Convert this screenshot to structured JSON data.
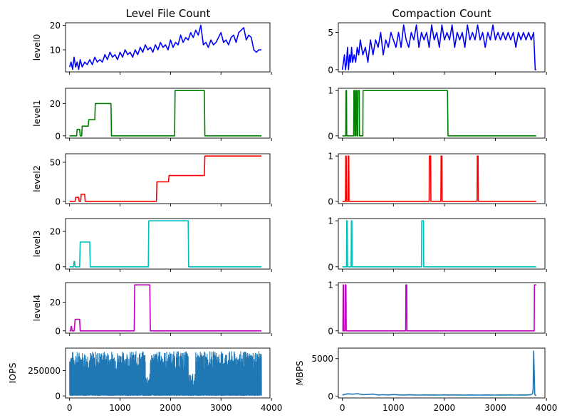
{
  "figure": {
    "left_title": "Level File Count",
    "right_title": "Compaction Count"
  },
  "colors": {
    "level0": "#0000ff",
    "level1": "#008000",
    "level2": "#ff0000",
    "level3": "#00bfbf",
    "level4": "#bf00bf",
    "throughput": "#1f77b4"
  },
  "chart_data": [
    {
      "id": "file_level0",
      "type": "line",
      "title": "Level File Count",
      "ylabel": "level0",
      "xlim": [
        -80,
        3970
      ],
      "ylim": [
        1,
        21
      ],
      "yticks": [
        10,
        20
      ],
      "xticklabels": false,
      "color": "level0",
      "x": [
        0,
        30,
        60,
        90,
        120,
        150,
        180,
        210,
        250,
        300,
        350,
        400,
        450,
        500,
        550,
        600,
        650,
        700,
        750,
        800,
        850,
        900,
        950,
        1000,
        1050,
        1100,
        1150,
        1200,
        1250,
        1300,
        1350,
        1400,
        1450,
        1500,
        1550,
        1600,
        1650,
        1700,
        1750,
        1800,
        1850,
        1900,
        1950,
        2000,
        2050,
        2100,
        2150,
        2200,
        2250,
        2300,
        2350,
        2400,
        2450,
        2500,
        2550,
        2600,
        2650,
        2700,
        2750,
        2800,
        2850,
        2900,
        2950,
        3000,
        3050,
        3100,
        3150,
        3200,
        3250,
        3300,
        3350,
        3400,
        3450,
        3500,
        3550,
        3600,
        3650,
        3700,
        3750,
        3800
      ],
      "y": [
        3,
        5,
        2,
        7,
        3,
        5,
        2,
        6,
        3,
        5,
        4,
        6,
        4,
        7,
        5,
        6,
        5,
        8,
        6,
        9,
        7,
        8,
        6,
        9,
        7,
        10,
        8,
        9,
        7,
        10,
        8,
        11,
        9,
        12,
        10,
        11,
        9,
        12,
        10,
        13,
        11,
        12,
        10,
        14,
        11,
        13,
        12,
        16,
        13,
        15,
        14,
        17,
        15,
        18,
        16,
        20,
        12,
        13,
        11,
        14,
        12,
        13,
        15,
        17,
        13,
        14,
        12,
        15,
        16,
        13,
        17,
        18,
        19,
        14,
        16,
        15,
        10,
        9,
        10,
        10
      ]
    },
    {
      "id": "compaction_level0",
      "type": "line",
      "title": "Compaction Count",
      "xlim": [
        -80,
        3970
      ],
      "ylim": [
        -0.3,
        6.3
      ],
      "yticks": [
        0,
        5
      ],
      "xticklabels": false,
      "color": "level0",
      "x": [
        0,
        40,
        60,
        80,
        100,
        120,
        140,
        160,
        180,
        200,
        230,
        260,
        290,
        320,
        350,
        400,
        450,
        500,
        550,
        600,
        650,
        700,
        750,
        800,
        850,
        900,
        950,
        1000,
        1050,
        1100,
        1150,
        1200,
        1250,
        1300,
        1350,
        1400,
        1450,
        1500,
        1550,
        1600,
        1650,
        1700,
        1750,
        1800,
        1850,
        1900,
        1950,
        2000,
        2050,
        2100,
        2150,
        2200,
        2250,
        2300,
        2350,
        2400,
        2450,
        2500,
        2550,
        2600,
        2650,
        2700,
        2750,
        2800,
        2850,
        2900,
        2950,
        3000,
        3050,
        3100,
        3150,
        3200,
        3250,
        3300,
        3350,
        3400,
        3450,
        3500,
        3550,
        3600,
        3650,
        3700,
        3750,
        3780,
        3800
      ],
      "y": [
        0,
        2,
        0,
        1,
        3,
        0,
        2,
        1,
        3,
        1,
        2,
        1,
        3,
        2,
        4,
        2,
        3,
        1,
        4,
        2,
        4,
        3,
        5,
        2,
        4,
        3,
        5,
        4,
        3,
        5,
        3,
        6,
        4,
        3,
        5,
        4,
        6,
        3,
        5,
        4,
        5,
        3,
        6,
        4,
        5,
        3,
        6,
        4,
        5,
        4,
        6,
        3,
        5,
        4,
        5,
        3,
        6,
        4,
        5,
        4,
        6,
        4,
        5,
        3,
        5,
        4,
        6,
        4,
        5,
        4,
        5,
        4,
        5,
        4,
        5,
        3,
        5,
        4,
        5,
        4,
        5,
        4,
        5,
        0,
        0
      ]
    },
    {
      "id": "file_level1",
      "type": "line",
      "ylabel": "level1",
      "xlim": [
        -80,
        3970
      ],
      "ylim": [
        -1.4,
        29.4
      ],
      "yticks": [
        0,
        20
      ],
      "xticklabels": false,
      "color": "level1",
      "x": [
        0,
        140,
        150,
        200,
        210,
        240,
        250,
        370,
        380,
        500,
        510,
        820,
        830,
        2080,
        2090,
        2670,
        2680,
        3800
      ],
      "y": [
        0,
        0,
        4,
        4,
        0,
        0,
        6,
        6,
        10,
        10,
        20,
        20,
        0,
        0,
        28,
        28,
        0,
        0
      ]
    },
    {
      "id": "compaction_level1",
      "type": "line",
      "xlim": [
        -80,
        3970
      ],
      "ylim": [
        -0.05,
        1.05
      ],
      "yticks": [
        0,
        1
      ],
      "xticklabels": false,
      "color": "level1",
      "x": [
        0,
        65,
        70,
        80,
        85,
        220,
        225,
        240,
        245,
        260,
        265,
        280,
        285,
        300,
        305,
        330,
        335,
        400,
        405,
        2060,
        2070,
        2080,
        2090,
        3800
      ],
      "y": [
        0,
        0,
        1,
        1,
        0,
        0,
        1,
        1,
        0,
        0,
        1,
        1,
        0,
        0,
        1,
        1,
        0,
        0,
        1,
        1,
        0,
        0,
        0,
        0
      ]
    },
    {
      "id": "file_level2",
      "type": "line",
      "ylabel": "level2",
      "xlim": [
        -80,
        3970
      ],
      "ylim": [
        -2.9,
        60.9
      ],
      "yticks": [
        0,
        50
      ],
      "xticklabels": false,
      "color": "level2",
      "x": [
        0,
        110,
        120,
        180,
        190,
        220,
        230,
        300,
        310,
        1720,
        1730,
        1960,
        1970,
        2670,
        2680,
        3800
      ],
      "y": [
        0,
        0,
        5,
        5,
        0,
        0,
        9,
        9,
        0,
        0,
        25,
        25,
        33,
        33,
        58,
        58
      ],
      "mask": [
        0,
        0,
        0,
        0,
        0,
        0,
        0,
        0,
        0,
        0,
        0,
        0,
        0,
        0,
        0,
        0
      ]
    },
    {
      "id": "compaction_level2",
      "type": "line",
      "xlim": [
        -80,
        3970
      ],
      "ylim": [
        -0.05,
        1.05
      ],
      "yticks": [
        0,
        1
      ],
      "xticklabels": false,
      "color": "level2",
      "x": [
        0,
        60,
        65,
        75,
        80,
        110,
        115,
        125,
        130,
        1700,
        1705,
        1730,
        1735,
        1930,
        1935,
        1950,
        1955,
        2640,
        2645,
        2660,
        2665,
        3800
      ],
      "y": [
        0,
        0,
        1,
        1,
        0,
        0,
        1,
        1,
        0,
        0,
        1,
        1,
        0,
        0,
        1,
        1,
        0,
        0,
        1,
        1,
        0,
        0
      ]
    },
    {
      "id": "file_level3",
      "type": "line",
      "ylabel": "level3",
      "xlim": [
        -80,
        3970
      ],
      "ylim": [
        -1.3,
        27.3
      ],
      "yticks": [
        0,
        20
      ],
      "xticklabels": false,
      "color": "level3",
      "x": [
        0,
        80,
        90,
        100,
        110,
        200,
        210,
        400,
        410,
        1560,
        1570,
        2350,
        2360,
        3800
      ],
      "y": [
        0,
        0,
        3,
        3,
        0,
        0,
        14,
        14,
        0,
        0,
        26,
        26,
        0,
        0
      ]
    },
    {
      "id": "compaction_level3",
      "type": "line",
      "xlim": [
        -80,
        3970
      ],
      "ylim": [
        -0.05,
        1.05
      ],
      "yticks": [
        0,
        1
      ],
      "xticklabels": false,
      "color": "level3",
      "x": [
        0,
        80,
        85,
        95,
        100,
        170,
        175,
        185,
        190,
        1550,
        1555,
        1590,
        1595,
        3800
      ],
      "y": [
        0,
        0,
        1,
        1,
        0,
        0,
        1,
        1,
        0,
        0,
        1,
        1,
        0,
        0
      ]
    },
    {
      "id": "file_level4",
      "type": "line",
      "ylabel": "level4",
      "xlim": [
        -80,
        3970
      ],
      "ylim": [
        -1.6,
        33.6
      ],
      "yticks": [
        0,
        20
      ],
      "xticklabels": false,
      "color": "level4",
      "x": [
        0,
        20,
        30,
        40,
        50,
        90,
        100,
        100,
        110,
        200,
        210,
        240,
        250,
        1280,
        1290,
        1590,
        1600,
        3800
      ],
      "y": [
        0,
        0,
        3,
        3,
        0,
        0,
        4,
        4,
        8,
        8,
        0,
        0,
        0,
        0,
        32,
        32,
        0,
        0
      ]
    },
    {
      "id": "compaction_level4",
      "type": "line",
      "xlim": [
        -80,
        3970
      ],
      "ylim": [
        -0.05,
        1.05
      ],
      "yticks": [
        0,
        1
      ],
      "xticklabels": false,
      "color": "level4",
      "x": [
        0,
        10,
        15,
        20,
        25,
        50,
        55,
        70,
        75,
        1240,
        1245,
        1260,
        1265,
        3760,
        3765,
        3800
      ],
      "y": [
        0,
        0,
        1,
        1,
        0,
        0,
        1,
        1,
        0,
        0,
        1,
        1,
        0,
        0,
        1,
        1
      ]
    },
    {
      "id": "iops",
      "type": "line",
      "ylabel": "IOPS",
      "xlim": [
        -80,
        3970
      ],
      "ylim": [
        -20000,
        470000
      ],
      "yticks": [
        0,
        250000
      ],
      "xticks": [
        0,
        1000,
        2000,
        3000,
        4000
      ],
      "color": "throughput",
      "x": [
        0,
        3800
      ],
      "y": [
        0,
        0
      ],
      "band": {
        "x_start": 0,
        "x_end": 3800,
        "step": 5,
        "high": 440000,
        "low_base": 10000,
        "dense_segments": [
          [
            0,
            1500
          ],
          [
            1600,
            2350
          ],
          [
            2500,
            3800
          ]
        ]
      }
    },
    {
      "id": "mbps",
      "type": "line",
      "ylabel": "MBPS",
      "xlim": [
        -80,
        3970
      ],
      "ylim": [
        -250,
        6400
      ],
      "yticks": [
        0,
        5000
      ],
      "xticks": [
        0,
        1000,
        2000,
        3000,
        4000
      ],
      "color": "throughput",
      "x": [
        0,
        100,
        200,
        300,
        400,
        500,
        600,
        700,
        800,
        900,
        1000,
        1100,
        1200,
        1300,
        1400,
        1500,
        1600,
        1700,
        1800,
        1900,
        2000,
        2100,
        2200,
        2300,
        2400,
        2500,
        2600,
        2700,
        2800,
        2900,
        3000,
        3100,
        3200,
        3300,
        3400,
        3500,
        3600,
        3700,
        3730,
        3740,
        3750,
        3760,
        3770,
        3780,
        3800
      ],
      "y": [
        150,
        300,
        250,
        320,
        180,
        220,
        260,
        140,
        180,
        150,
        200,
        160,
        140,
        170,
        150,
        130,
        160,
        140,
        150,
        130,
        160,
        140,
        150,
        140,
        130,
        150,
        140,
        130,
        150,
        140,
        130,
        150,
        140,
        160,
        130,
        150,
        140,
        200,
        350,
        1000,
        6000,
        3000,
        300,
        100,
        100
      ]
    }
  ]
}
